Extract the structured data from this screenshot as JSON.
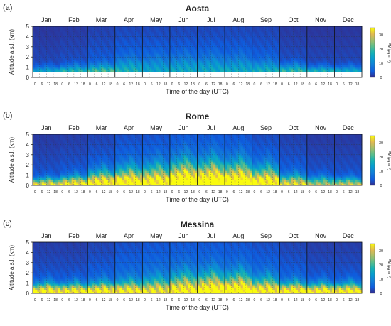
{
  "chart_data": [
    {
      "type": "heatmap",
      "panel_label": "(a)",
      "title": "Aosta",
      "xlabel": "Time of the day (UTC)",
      "ylabel": "Altitude a.s.l. (km)",
      "months": [
        "Jan",
        "Feb",
        "Mar",
        "Apr",
        "May",
        "Jun",
        "Jul",
        "Aug",
        "Sep",
        "Oct",
        "Nov",
        "Dec"
      ],
      "hour_ticks": [
        "0",
        "6",
        "12",
        "18"
      ],
      "ylim": [
        0,
        5
      ],
      "yticks": [
        0,
        1,
        2,
        3,
        4,
        5
      ],
      "colorbar": {
        "label": "PM (µg m⁻³)",
        "range": [
          0,
          35
        ],
        "ticks": [
          0,
          10,
          20,
          30
        ]
      },
      "ground_km": 0.55,
      "surface_peak_ugm3": [
        12,
        15,
        16,
        11,
        8,
        9,
        9,
        9,
        11,
        16,
        15,
        13
      ],
      "mixing_height_km": [
        0.6,
        0.7,
        0.8,
        1.3,
        1.5,
        1.6,
        1.6,
        1.5,
        1.1,
        0.8,
        0.6,
        0.6
      ],
      "aloft_ugm3": [
        4,
        5,
        7,
        9,
        9,
        9,
        9,
        9,
        8,
        5,
        4,
        4
      ]
    },
    {
      "type": "heatmap",
      "panel_label": "(b)",
      "title": "Rome",
      "xlabel": "Time of the day (UTC)",
      "ylabel": "Altitude a.s.l. (km)",
      "months": [
        "Jan",
        "Feb",
        "Mar",
        "Apr",
        "May",
        "Jun",
        "Jul",
        "Aug",
        "Sep",
        "Oct",
        "Nov",
        "Dec"
      ],
      "hour_ticks": [
        "0",
        "6",
        "12",
        "18"
      ],
      "ylim": [
        0,
        5
      ],
      "yticks": [
        0,
        1,
        2,
        3,
        4,
        5
      ],
      "colorbar": {
        "label": "PM (µg m⁻³)",
        "range": [
          0,
          35
        ],
        "ticks": [
          0,
          10,
          20,
          30
        ]
      },
      "ground_km": 0.05,
      "surface_peak_ugm3": [
        30,
        32,
        33,
        32,
        30,
        33,
        33,
        33,
        32,
        28,
        24,
        26
      ],
      "mixing_height_km": [
        0.7,
        0.9,
        1.4,
        1.7,
        1.9,
        2.3,
        2.3,
        2.2,
        1.8,
        1.0,
        0.8,
        0.7
      ],
      "aloft_ugm3": [
        5,
        6,
        8,
        11,
        12,
        14,
        14,
        13,
        10,
        7,
        5,
        5
      ]
    },
    {
      "type": "heatmap",
      "panel_label": "(c)",
      "title": "Messina",
      "xlabel": "Time of the day (UTC)",
      "ylabel": "Altitude a.s.l. (km)",
      "months": [
        "Jan",
        "Feb",
        "Mar",
        "Apr",
        "May",
        "Jun",
        "Jul",
        "Aug",
        "Sep",
        "Oct",
        "Nov",
        "Dec"
      ],
      "hour_ticks": [
        "0",
        "6",
        "12",
        "18"
      ],
      "ylim": [
        0,
        5
      ],
      "yticks": [
        0,
        1,
        2,
        3,
        4,
        5
      ],
      "colorbar": {
        "label": "PM (µg m⁻³)",
        "range": [
          0,
          35
        ],
        "ticks": [
          0,
          10,
          20,
          30
        ]
      },
      "ground_km": 0.05,
      "surface_peak_ugm3": [
        34,
        33,
        32,
        28,
        24,
        27,
        30,
        31,
        29,
        33,
        34,
        34
      ],
      "mixing_height_km": [
        1.0,
        1.0,
        1.1,
        1.2,
        1.4,
        1.8,
        1.9,
        1.9,
        1.5,
        1.1,
        1.0,
        1.0
      ],
      "aloft_ugm3": [
        6,
        6,
        8,
        11,
        13,
        14,
        14,
        13,
        11,
        8,
        6,
        6
      ]
    }
  ]
}
